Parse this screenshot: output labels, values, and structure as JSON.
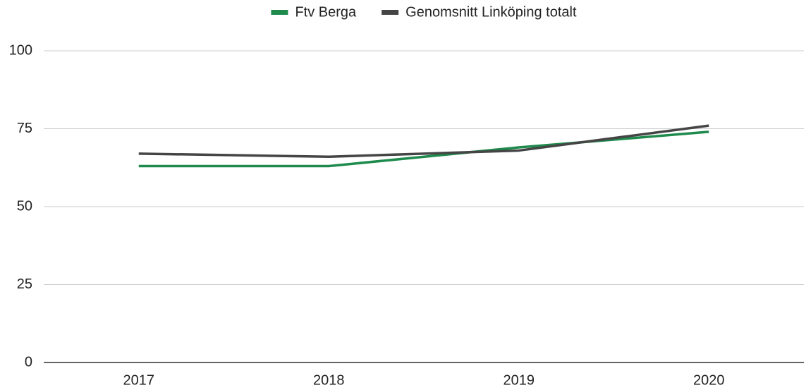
{
  "chart_data": {
    "type": "line",
    "categories": [
      "2017",
      "2018",
      "2019",
      "2020"
    ],
    "series": [
      {
        "name": "Ftv Berga",
        "color": "#1e8a4c",
        "values": [
          63,
          63,
          69,
          74
        ]
      },
      {
        "name": "Genomsnitt Linköping totalt",
        "color": "#454545",
        "values": [
          67,
          66,
          68,
          76
        ]
      }
    ],
    "ylim": [
      0,
      100
    ],
    "yticks": [
      0,
      25,
      50,
      75,
      100
    ],
    "grid": true,
    "legend": "top"
  }
}
